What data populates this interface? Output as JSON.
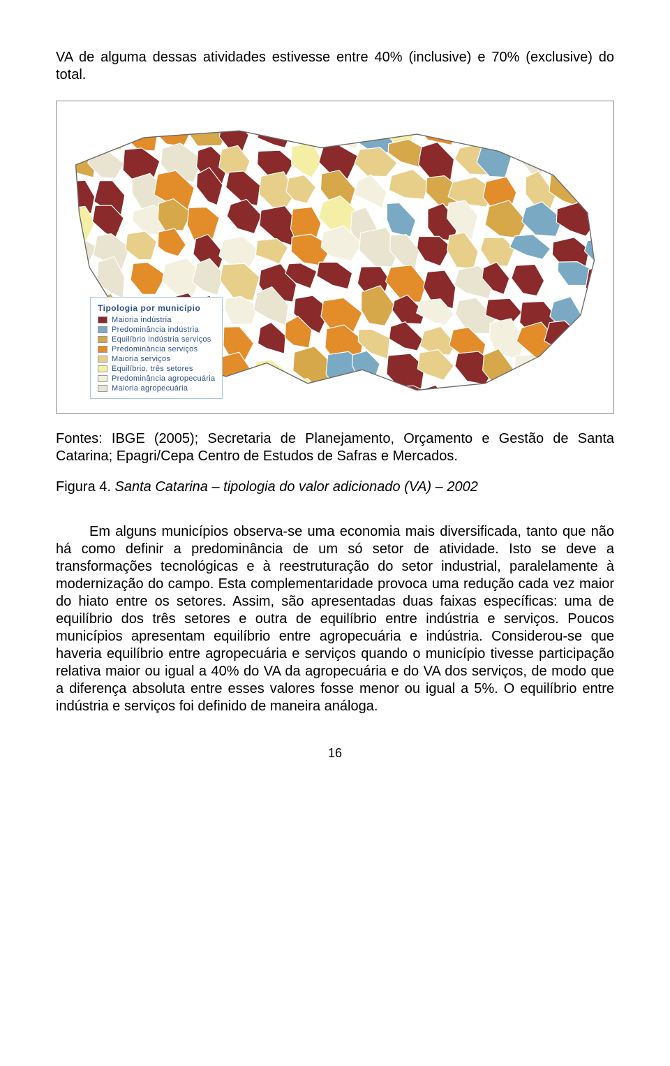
{
  "intro": "VA de alguma dessas atividades estivesse entre 40% (inclusive) e 70% (exclusive) do total.",
  "map": {
    "type": "choropleth-map",
    "region": "Santa Catarina",
    "background_color": "#ffffff",
    "border_color": "#888888",
    "legend": {
      "title": "Tipologia por município",
      "title_color": "#2a4f8f",
      "label_color": "#2a4f8f",
      "box_border": "#a8c9e0",
      "items": [
        {
          "label": "Maioria indústria",
          "color": "#8a2a2a"
        },
        {
          "label": "Predominância indústria",
          "color": "#7aa9c4"
        },
        {
          "label": "Equilíbrio indústria serviços",
          "color": "#d6a84a"
        },
        {
          "label": "Predominância serviços",
          "color": "#e38c2a"
        },
        {
          "label": "Maioria serviços",
          "color": "#e7cf8a"
        },
        {
          "label": "Equilíbrio, três setores",
          "color": "#f5efa6"
        },
        {
          "label": "Predominância agropecuária",
          "color": "#f3f0df"
        },
        {
          "label": "Maioria agropecuária",
          "color": "#e8e4d0"
        }
      ]
    }
  },
  "source": "Fontes: IBGE (2005); Secretaria de Planejamento, Orçamento e Gestão de Santa Catarina; Epagri/Cepa Centro de Estudos de Safras e Mercados.",
  "figure": {
    "label": "Figura 4.",
    "title": "Santa Catarina – tipologia do valor adicionado (VA) – 2002"
  },
  "body": "Em alguns municípios observa-se uma economia mais diversificada, tanto que não há como definir a predominância de um só setor de atividade. Isto se deve a transformações tecnológicas e à reestruturação do setor industrial, paralelamente à modernização do campo. Esta complementaridade provoca uma redução cada vez maior do hiato entre os setores. Assim, são apresentadas duas faixas específicas: uma de equilíbrio dos três setores e outra de equilíbrio entre indústria e serviços. Poucos municípios apresentam equilíbrio entre agropecuária e indústria. Considerou-se que haveria equilíbrio entre agropecuária e serviços quando o município tivesse participação relativa maior ou igual a 40% do VA da agropecuária e do VA dos serviços, de modo que a diferença absoluta entre esses valores fosse menor ou igual a 5%. O equilíbrio entre indústria e serviços foi definido de maneira análoga.",
  "page_number": "16"
}
